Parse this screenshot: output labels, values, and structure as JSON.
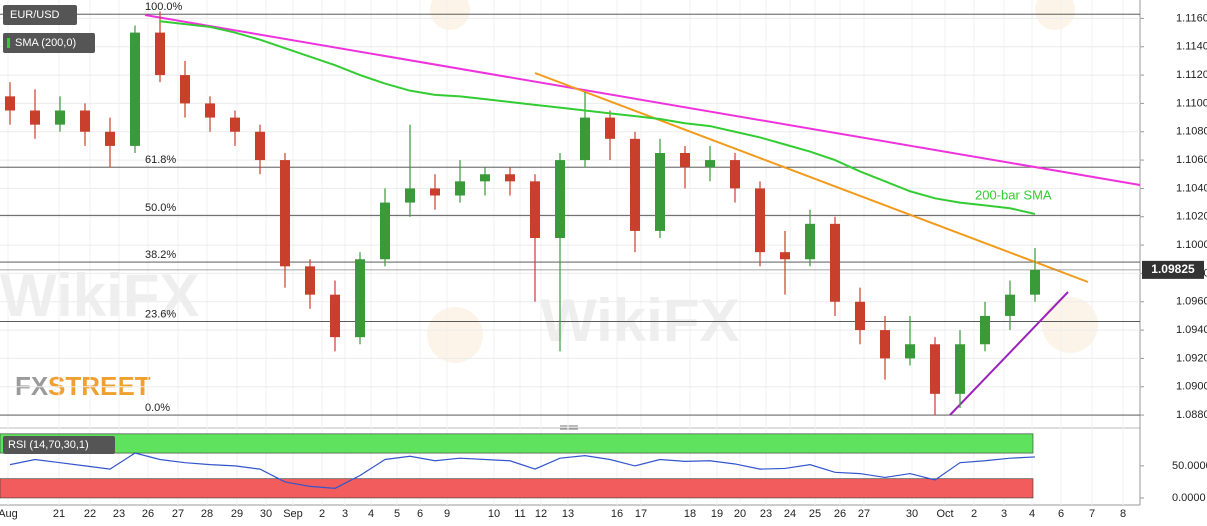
{
  "chart_data": [
    {
      "type": "candlestick",
      "series_label": "EUR/USD",
      "indicator_label": "SMA (200,0)",
      "annotation": "200-bar SMA",
      "open": [
        1.1105,
        1.1095,
        1.1085,
        1.1095,
        1.108,
        1.107,
        1.115,
        1.112,
        1.11,
        1.109,
        1.108,
        1.106,
        1.0985,
        1.0965,
        1.0935,
        1.099,
        1.103,
        1.104,
        1.1035,
        1.1045,
        1.105,
        1.1045,
        1.1005,
        1.106,
        1.109,
        1.1075,
        1.101,
        1.1065,
        1.1055,
        1.106,
        1.104,
        1.0995,
        1.099,
        1.1015,
        1.096,
        1.094,
        1.092,
        1.093,
        1.0895,
        1.093,
        1.095,
        1.0965
      ],
      "high": [
        1.1115,
        1.111,
        1.1105,
        1.11,
        1.109,
        1.1155,
        1.1165,
        1.113,
        1.1105,
        1.1095,
        1.1085,
        1.1065,
        1.099,
        1.0975,
        1.0995,
        1.104,
        1.1085,
        1.105,
        1.106,
        1.1055,
        1.1055,
        1.105,
        1.1065,
        1.1108,
        1.1095,
        1.108,
        1.1075,
        1.107,
        1.107,
        1.1065,
        1.1045,
        1.101,
        1.1025,
        1.102,
        1.097,
        1.095,
        1.095,
        1.0935,
        1.094,
        1.096,
        1.0975,
        1.0998
      ],
      "low": [
        1.1085,
        1.1075,
        1.108,
        1.107,
        1.1055,
        1.1065,
        1.1115,
        1.109,
        1.108,
        1.107,
        1.105,
        1.097,
        1.0955,
        1.0925,
        1.093,
        1.0985,
        1.102,
        1.1025,
        1.103,
        1.1035,
        1.1035,
        1.096,
        1.0925,
        1.1055,
        1.106,
        1.0995,
        1.1005,
        1.104,
        1.1045,
        1.103,
        1.0985,
        1.0965,
        1.0985,
        1.095,
        1.093,
        1.0905,
        1.0915,
        1.088,
        1.0885,
        1.0925,
        1.094,
        1.096
      ],
      "close": [
        1.1095,
        1.1085,
        1.1095,
        1.108,
        1.107,
        1.115,
        1.112,
        1.11,
        1.109,
        1.108,
        1.106,
        1.0985,
        1.0965,
        1.0935,
        1.099,
        1.103,
        1.104,
        1.1035,
        1.1045,
        1.105,
        1.1045,
        1.1005,
        1.106,
        1.109,
        1.1075,
        1.101,
        1.1065,
        1.1055,
        1.106,
        1.104,
        1.0995,
        1.099,
        1.1015,
        1.096,
        1.094,
        1.092,
        1.093,
        1.0895,
        1.093,
        1.095,
        1.0965,
        1.09825
      ],
      "sma_values": [
        null,
        null,
        null,
        null,
        null,
        null,
        1.1158,
        1.1156,
        1.1154,
        1.115,
        1.1145,
        1.1139,
        1.1133,
        1.1127,
        1.112,
        1.1114,
        1.1109,
        1.1106,
        1.1105,
        1.1103,
        1.1101,
        1.1099,
        1.1097,
        1.1095,
        1.1093,
        1.1091,
        1.1089,
        1.1086,
        1.1084,
        1.108,
        1.1076,
        1.1071,
        1.1066,
        1.106,
        1.1052,
        1.1045,
        1.1038,
        1.1033,
        1.103,
        1.1028,
        1.1026,
        1.1022
      ],
      "up_color": "#3a9a3a",
      "down_color": "#c8402b",
      "sma_color": "#33cc33",
      "ylim": [
        1.0873,
        1.1173
      ],
      "yticks": [
        {
          "value": 1.116,
          "label": "1.1160"
        },
        {
          "value": 1.114,
          "label": "1.1140"
        },
        {
          "value": 1.112,
          "label": "1.1120"
        },
        {
          "value": 1.11,
          "label": "1.1100"
        },
        {
          "value": 1.108,
          "label": "1.1080"
        },
        {
          "value": 1.106,
          "label": "1.1060"
        },
        {
          "value": 1.104,
          "label": "1.1040"
        },
        {
          "value": 1.102,
          "label": "1.1020"
        },
        {
          "value": 1.1,
          "label": "1.1000"
        },
        {
          "value": 1.098,
          "label": "1.0980"
        },
        {
          "value": 1.096,
          "label": "1.0960"
        },
        {
          "value": 1.094,
          "label": "1.0940"
        },
        {
          "value": 1.092,
          "label": "1.0920"
        },
        {
          "value": 1.09,
          "label": "1.0900"
        },
        {
          "value": 1.088,
          "label": "1.0880"
        }
      ],
      "fib_levels": [
        {
          "label": "100.0%",
          "value": 1.1163
        },
        {
          "label": "61.8%",
          "value": 1.1055
        },
        {
          "label": "50.0%",
          "value": 1.1021
        },
        {
          "label": "38.2%",
          "value": 1.0988
        },
        {
          "label": "23.6%",
          "value": 1.0946
        },
        {
          "label": "0.0%",
          "value": 1.088
        }
      ],
      "current_price": 1.09825,
      "grid": true
    },
    {
      "type": "line",
      "title": "RSI (14,70,30,1)",
      "values": [
        52,
        60,
        55,
        50,
        45,
        70,
        60,
        55,
        52,
        50,
        45,
        25,
        18,
        15,
        35,
        60,
        65,
        58,
        62,
        60,
        58,
        45,
        62,
        66,
        60,
        50,
        60,
        57,
        58,
        53,
        45,
        46,
        52,
        40,
        38,
        32,
        38,
        28,
        55,
        58,
        62,
        64
      ],
      "color": "#3355cc",
      "ylim": [
        -11,
        106
      ],
      "yticks": [
        {
          "value": 50,
          "label": "50.0000"
        },
        {
          "value": 0,
          "label": "0.0000"
        }
      ],
      "bands": [
        {
          "from": 70,
          "to": 100,
          "color": "#5fe35f"
        },
        {
          "from": 0,
          "to": 30,
          "color": "#f25c5c"
        }
      ],
      "date_labels": [
        "Aug",
        "21",
        "22",
        "23",
        "26",
        "27",
        "28",
        "29",
        "30",
        "Sep",
        "2",
        "3",
        "4",
        "5",
        "6",
        "9",
        "10",
        "11",
        "12",
        "13",
        "16",
        "17",
        "18",
        "19",
        "20",
        "23",
        "24",
        "25",
        "26",
        "27",
        "30",
        "Oct",
        "2",
        "3",
        "4",
        "6",
        "7",
        "8"
      ]
    }
  ],
  "watermarks": {
    "wikifx": "WikiFX",
    "fx": "FX",
    "street": "STREET"
  }
}
